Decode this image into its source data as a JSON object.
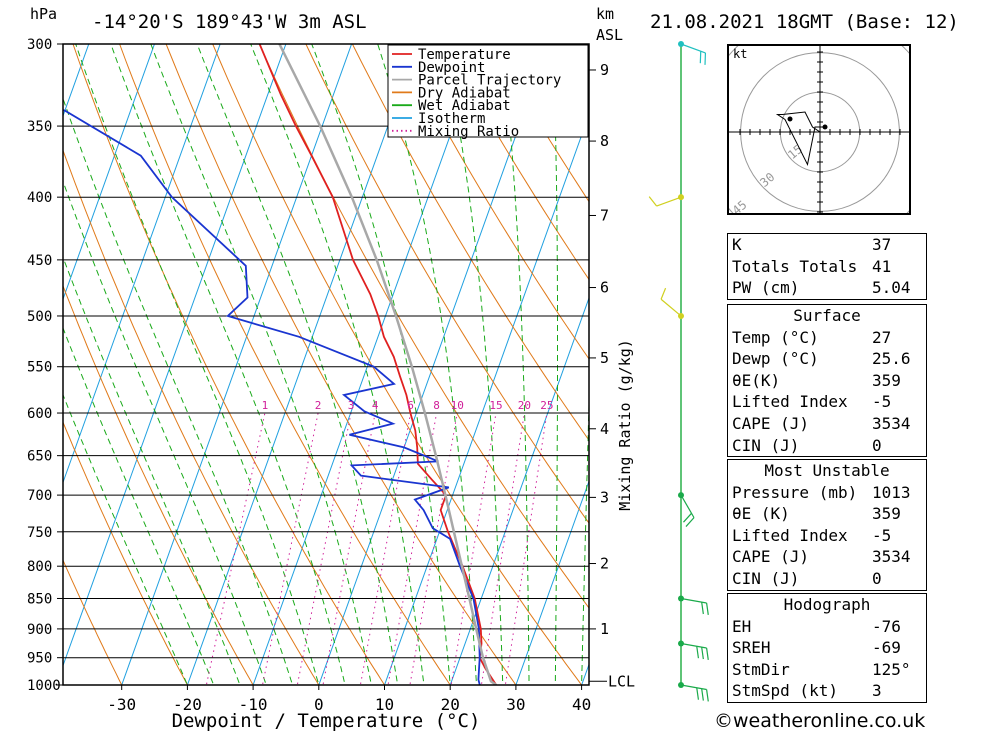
{
  "header": {
    "pressure_unit": "hPa",
    "location": "-14°20'S  189°43'W  3m  ASL",
    "km_label": "km",
    "asl_label": "ASL",
    "datetime": "21.08.2021  18GMT  (Base: 12)"
  },
  "chart_data": {
    "type": "line",
    "title": "-14°20'S 189°43'W 3m ASL",
    "xlabel": "Dewpoint / Temperature (°C)",
    "ylabel": "hPa",
    "right_label": "Mixing Ratio (g/kg)",
    "pressure_levels": [
      300,
      350,
      400,
      450,
      500,
      550,
      600,
      650,
      700,
      750,
      800,
      850,
      900,
      950,
      1000
    ],
    "x_ticks": [
      -30,
      -20,
      -10,
      0,
      10,
      20,
      30,
      40
    ],
    "x_range": [
      -40,
      40
    ],
    "p_range": [
      1000,
      300
    ],
    "km_ticks": [
      {
        "km": 1,
        "p": 900
      },
      {
        "km": 2,
        "p": 796
      },
      {
        "km": 3,
        "p": 703
      },
      {
        "km": 4,
        "p": 618
      },
      {
        "km": 5,
        "p": 541
      },
      {
        "km": 6,
        "p": 474
      },
      {
        "km": 7,
        "p": 414
      },
      {
        "km": 8,
        "p": 360
      },
      {
        "km": 9,
        "p": 315
      }
    ],
    "lcl_label": "LCL",
    "lcl_pressure": 993,
    "mixing_ratio_labels": [
      "1",
      "2",
      "3",
      "4",
      "6",
      "8",
      "10",
      "15",
      "20",
      "25"
    ],
    "mixing_ratio_values": [
      1,
      2,
      3,
      4,
      6,
      8,
      10,
      15,
      20,
      25
    ],
    "legend": [
      "Temperature",
      "Dewpoint",
      "Parcel Trajectory",
      "Dry Adiabat",
      "Wet Adiabat",
      "Isotherm",
      "Mixing Ratio"
    ],
    "series": [
      {
        "name": "Temperature",
        "color": "#e02020",
        "points": [
          [
            1000,
            27.0
          ],
          [
            970,
            24.5
          ],
          [
            950,
            23.0
          ],
          [
            925,
            22.5
          ],
          [
            900,
            21.6
          ],
          [
            850,
            19.0
          ],
          [
            800,
            15.4
          ],
          [
            750,
            11.3
          ],
          [
            720,
            9.0
          ],
          [
            700,
            9.0
          ],
          [
            680,
            6.0
          ],
          [
            660,
            3.0
          ],
          [
            640,
            2.0
          ],
          [
            620,
            0.8
          ],
          [
            600,
            -0.9
          ],
          [
            580,
            -2.5
          ],
          [
            560,
            -4.5
          ],
          [
            540,
            -6.5
          ],
          [
            520,
            -9.1
          ],
          [
            500,
            -11.1
          ],
          [
            480,
            -13.5
          ],
          [
            450,
            -18.0
          ],
          [
            400,
            -24.5
          ],
          [
            370,
            -30.0
          ],
          [
            350,
            -34.0
          ],
          [
            330,
            -38.0
          ],
          [
            300,
            -44.0
          ]
        ]
      },
      {
        "name": "Dewpoint",
        "color": "#1a35d0",
        "points": [
          [
            1000,
            24.5
          ],
          [
            990,
            24.0
          ],
          [
            950,
            23.0
          ],
          [
            900,
            21.3
          ],
          [
            850,
            18.8
          ],
          [
            800,
            15.0
          ],
          [
            760,
            12.0
          ],
          [
            745,
            8.8
          ],
          [
            720,
            6.4
          ],
          [
            706,
            4.5
          ],
          [
            690,
            9.0
          ],
          [
            675,
            -5.0
          ],
          [
            662,
            -7.0
          ],
          [
            657,
            6.0
          ],
          [
            640,
            0.0
          ],
          [
            625,
            -9.0
          ],
          [
            612,
            -3.0
          ],
          [
            598,
            -8.0
          ],
          [
            580,
            -12.0
          ],
          [
            568,
            -5.0
          ],
          [
            550,
            -9.0
          ],
          [
            520,
            -22.0
          ],
          [
            500,
            -34.0
          ],
          [
            483,
            -32.0
          ],
          [
            455,
            -34.0
          ],
          [
            400,
            -49.0
          ],
          [
            370,
            -56.0
          ],
          [
            340,
            -70.0
          ],
          [
            320,
            -90.0
          ],
          [
            305,
            -90.0
          ],
          [
            300,
            -92.0
          ]
        ]
      },
      {
        "name": "Parcel Trajectory",
        "color": "#a8a8a8",
        "points": [
          [
            1000,
            27.0
          ],
          [
            993,
            26.0
          ],
          [
            950,
            23.5
          ],
          [
            900,
            20.9
          ],
          [
            850,
            18.2
          ],
          [
            800,
            15.3
          ],
          [
            750,
            12.2
          ],
          [
            700,
            8.9
          ],
          [
            650,
            5.3
          ],
          [
            600,
            1.3
          ],
          [
            550,
            -3.2
          ],
          [
            500,
            -8.4
          ],
          [
            450,
            -14.4
          ],
          [
            400,
            -21.6
          ],
          [
            350,
            -30.3
          ],
          [
            300,
            -41.0
          ]
        ]
      }
    ],
    "wind_barbs": [
      {
        "p": 300,
        "dir": 110,
        "kt": 20
      },
      {
        "p": 400,
        "dir": 250,
        "kt": 10
      },
      {
        "p": 500,
        "dir": 310,
        "kt": 10
      },
      {
        "p": 700,
        "dir": 150,
        "kt": 15
      },
      {
        "p": 850,
        "dir": 100,
        "kt": 20
      },
      {
        "p": 925,
        "dir": 100,
        "kt": 25
      },
      {
        "p": 1000,
        "dir": 100,
        "kt": 25
      }
    ]
  },
  "hodograph": {
    "unit_label": "kt",
    "ring_labels": [
      "15",
      "30",
      "45"
    ],
    "trace": [
      [
        0,
        0
      ],
      [
        -3,
        2
      ],
      [
        -6,
        8
      ],
      [
        -15,
        7
      ],
      [
        -17,
        7
      ],
      [
        -14,
        5
      ],
      [
        -5,
        -13
      ],
      [
        -2,
        2
      ],
      [
        2,
        2
      ]
    ]
  },
  "indices": [
    {
      "label": "K",
      "value": "37"
    },
    {
      "label": "Totals Totals",
      "value": "41"
    },
    {
      "label": "PW (cm)",
      "value": "5.04"
    }
  ],
  "surface": {
    "title": "Surface",
    "rows": [
      {
        "label": "Temp (°C)",
        "value": "27"
      },
      {
        "label": "Dewp (°C)",
        "value": "25.6"
      },
      {
        "label": "θE(K)",
        "value": "359"
      },
      {
        "label": "Lifted Index",
        "value": "-5"
      },
      {
        "label": "CAPE (J)",
        "value": "3534"
      },
      {
        "label": "CIN (J)",
        "value": "0"
      }
    ]
  },
  "most_unstable": {
    "title": "Most Unstable",
    "rows": [
      {
        "label": "Pressure (mb)",
        "value": "1013"
      },
      {
        "label": "θE (K)",
        "value": "359"
      },
      {
        "label": "Lifted Index",
        "value": "-5"
      },
      {
        "label": "CAPE (J)",
        "value": "3534"
      },
      {
        "label": "CIN (J)",
        "value": "0"
      }
    ]
  },
  "hodograph_stats": {
    "title": "Hodograph",
    "rows": [
      {
        "label": "EH",
        "value": "-76"
      },
      {
        "label": "SREH",
        "value": "-69"
      },
      {
        "label": "StmDir",
        "value": "125°"
      },
      {
        "label": "StmSpd (kt)",
        "value": "3"
      }
    ]
  },
  "copyright": "©weatheronline.co.uk",
  "colors": {
    "temperature": "#e02020",
    "dewpoint": "#1a35d0",
    "parcel": "#a8a8a8",
    "dry_adiabat": "#e07a1a",
    "wet_adiabat": "#1aaa1a",
    "isotherm": "#20a0e0",
    "mixing_ratio": "#d0209a",
    "wind": "#a0d020"
  }
}
